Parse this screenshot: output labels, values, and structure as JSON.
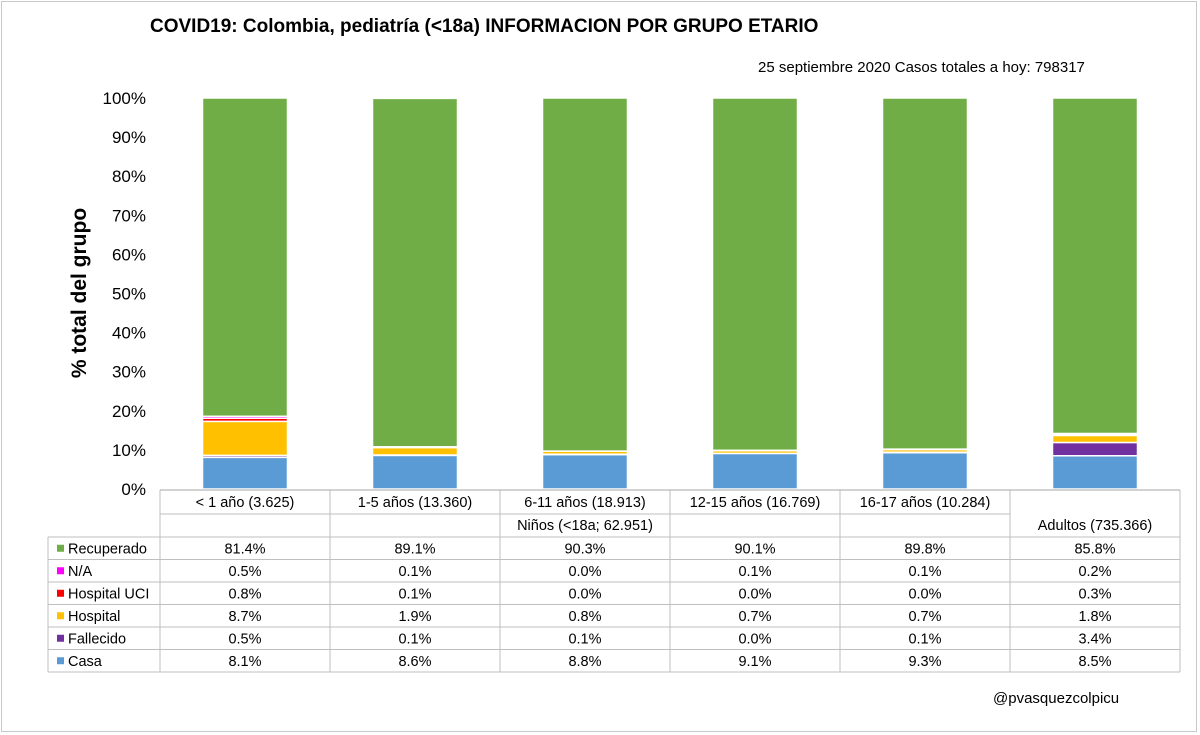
{
  "title": "COVID19:  Colombia,  pediatría  (<18a)  INFORMACION  POR  GRUPO  ETARIO",
  "subtitle": "25 septiembre 2020 Casos totales a hoy: 798317",
  "watermark": "@pvasquezcolpicu",
  "chart_data": {
    "type": "bar",
    "stacked": true,
    "ylabel": "% total del grupo",
    "ylim": [
      0,
      100
    ],
    "yticks": [
      "0%",
      "10%",
      "20%",
      "30%",
      "40%",
      "50%",
      "60%",
      "70%",
      "80%",
      "90%",
      "100%"
    ],
    "grid": false,
    "legend": "data-table-left",
    "categories": [
      "< 1 año (3.625)",
      "1-5 años (13.360)",
      "6-11 años (18.913)",
      "12-15 años (16.769)",
      "16-17 años (10.284)",
      ""
    ],
    "group_labels": [
      "Niños (<18a; 62.951)",
      "Adultos (735.366)"
    ],
    "series": [
      {
        "name": "Casa",
        "color": "#5b9bd5",
        "values": [
          8.1,
          8.6,
          8.8,
          9.1,
          9.3,
          8.5
        ],
        "labels": [
          "8.1%",
          "8.6%",
          "8.8%",
          "9.1%",
          "9.3%",
          "8.5%"
        ]
      },
      {
        "name": "Fallecido",
        "color": "#7030a0",
        "values": [
          0.5,
          0.1,
          0.1,
          0.0,
          0.1,
          3.4
        ],
        "labels": [
          "0.5%",
          "0.1%",
          "0.1%",
          "0.0%",
          "0.1%",
          "3.4%"
        ]
      },
      {
        "name": "Hospital",
        "color": "#ffc000",
        "values": [
          8.7,
          1.9,
          0.8,
          0.7,
          0.7,
          1.8
        ],
        "labels": [
          "8.7%",
          "1.9%",
          "0.8%",
          "0.7%",
          "0.7%",
          "1.8%"
        ]
      },
      {
        "name": "Hospital UCI",
        "color": "#ff0000",
        "values": [
          0.8,
          0.1,
          0.0,
          0.0,
          0.0,
          0.3
        ],
        "labels": [
          "0.8%",
          "0.1%",
          "0.0%",
          "0.0%",
          "0.0%",
          "0.3%"
        ]
      },
      {
        "name": "N/A",
        "color": "#ff00ff",
        "values": [
          0.5,
          0.1,
          0.0,
          0.1,
          0.1,
          0.2
        ],
        "labels": [
          "0.5%",
          "0.1%",
          "0.0%",
          "0.1%",
          "0.1%",
          "0.2%"
        ]
      },
      {
        "name": "Recuperado",
        "color": "#70ad47",
        "values": [
          81.4,
          89.1,
          90.3,
          90.1,
          89.8,
          85.8
        ],
        "labels": [
          "81.4%",
          "89.1%",
          "90.3%",
          "90.1%",
          "89.8%",
          "85.8%"
        ]
      }
    ],
    "table_order": [
      "Recuperado",
      "N/A",
      "Hospital UCI",
      "Hospital",
      "Fallecido",
      "Casa"
    ]
  }
}
